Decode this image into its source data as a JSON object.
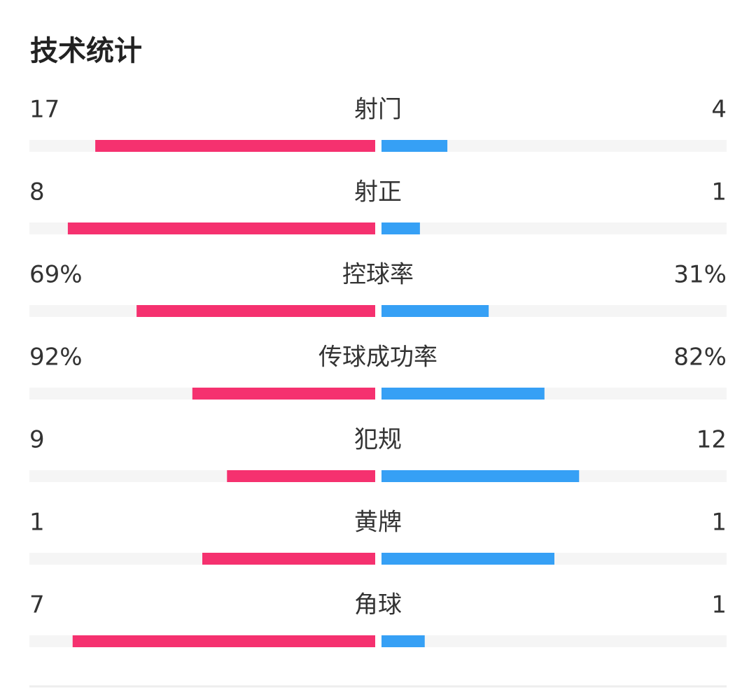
{
  "chart_data": {
    "type": "comparison",
    "title": "技术统计",
    "categories": [
      "射门",
      "射正",
      "控球率",
      "传球成功率",
      "犯规",
      "黄牌",
      "角球"
    ],
    "track_color": "#f5f5f5",
    "series": [
      {
        "color": "#f5316f",
        "values": [
          17,
          8,
          69,
          92,
          9,
          1,
          7
        ],
        "value_labels": [
          null,
          null,
          "69%",
          "92%",
          null,
          null,
          null
        ]
      },
      {
        "color": "#36a0f5",
        "values": [
          4,
          1,
          31,
          82,
          12,
          1,
          1
        ],
        "value_labels": [
          null,
          null,
          "31%",
          "82%",
          null,
          null,
          null
        ]
      }
    ]
  }
}
